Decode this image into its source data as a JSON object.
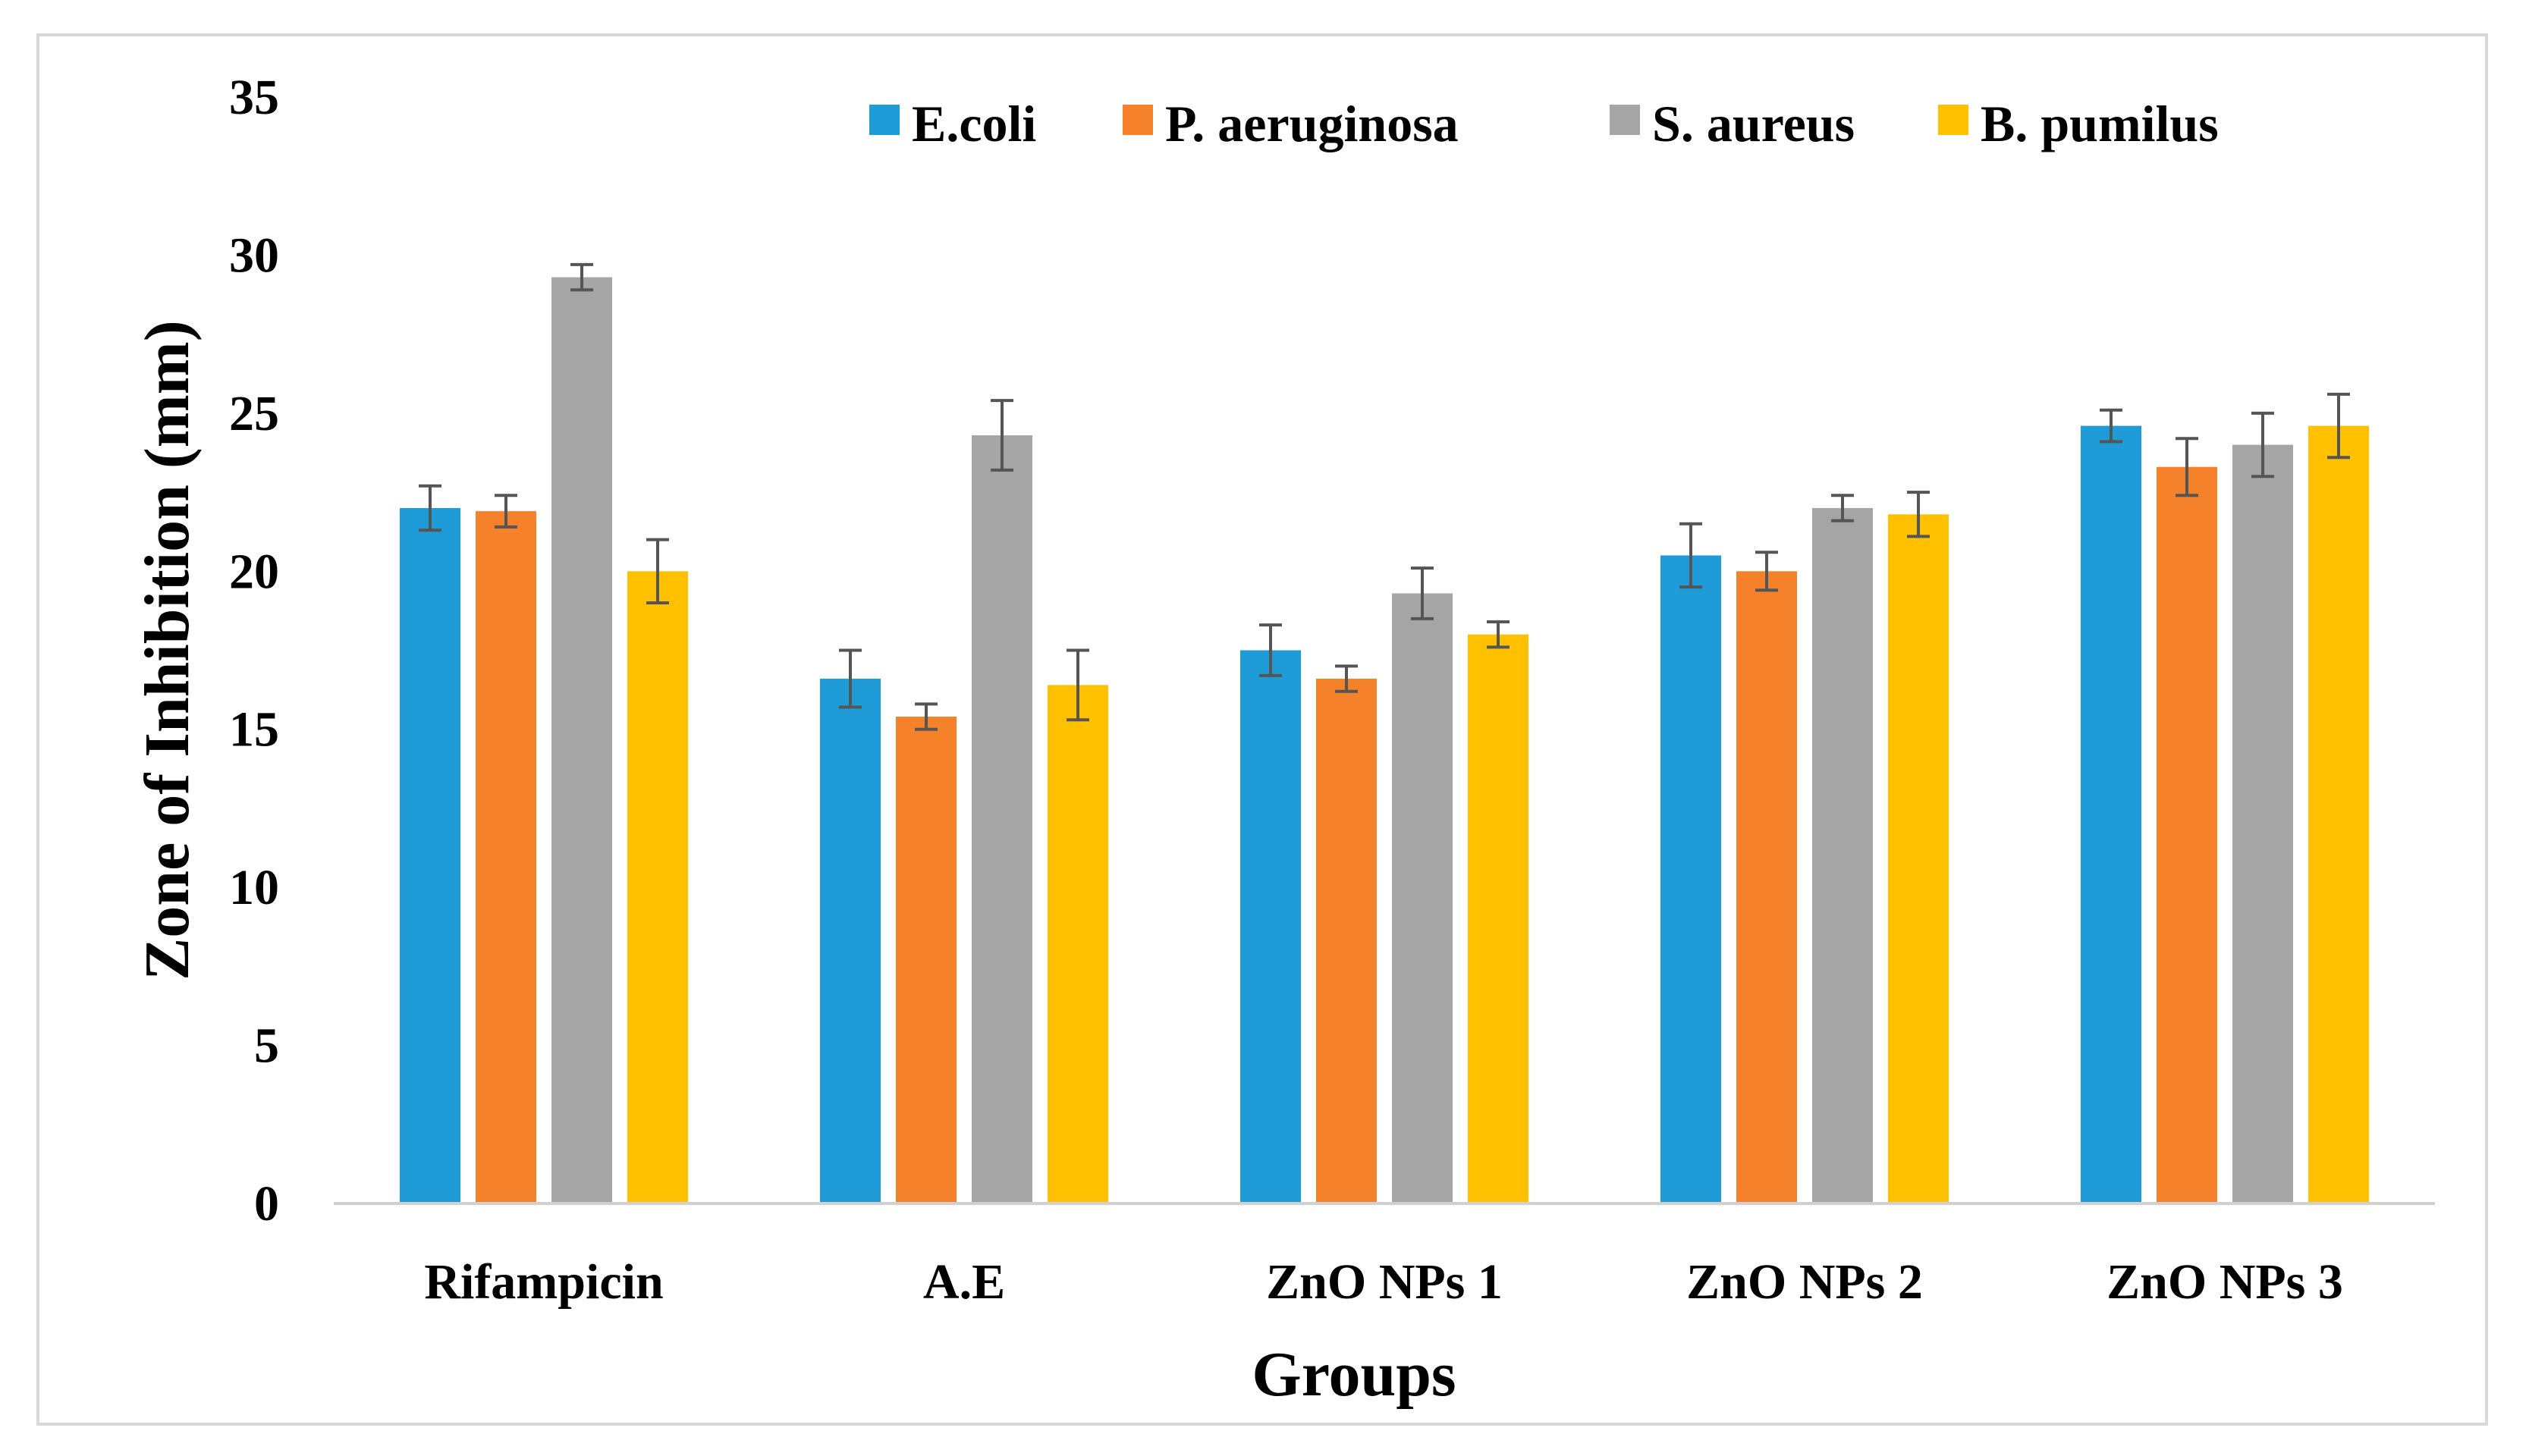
{
  "chart_data": {
    "type": "bar",
    "title": "",
    "xlabel": "Groups",
    "ylabel": "Zone of Inhibition (mm)",
    "ylim": [
      0,
      35
    ],
    "yticks": [
      0,
      5,
      10,
      15,
      20,
      25,
      30,
      35
    ],
    "grid": false,
    "legend_position": "top",
    "categories": [
      "Rifampicin",
      "A.E",
      "ZnO NPs 1",
      "ZnO NPs 2",
      "ZnO NPs 3"
    ],
    "series": [
      {
        "name": "E.coli",
        "color": "#1f9bd7",
        "values": [
          22.0,
          16.6,
          17.5,
          20.5,
          24.6
        ],
        "errors": [
          0.7,
          0.9,
          0.8,
          1.0,
          0.5
        ]
      },
      {
        "name": "P. aeruginosa",
        "color": "#f5822a",
        "values": [
          21.9,
          15.4,
          16.6,
          20.0,
          23.3
        ],
        "errors": [
          0.5,
          0.4,
          0.4,
          0.6,
          0.9
        ]
      },
      {
        "name": "S. aureus",
        "color": "#a5a5a5",
        "values": [
          29.3,
          24.3,
          19.3,
          22.0,
          24.0
        ],
        "errors": [
          0.4,
          1.1,
          0.8,
          0.4,
          1.0
        ]
      },
      {
        "name": "B. pumilus",
        "color": "#ffc000",
        "values": [
          20.0,
          16.4,
          18.0,
          21.8,
          24.6
        ],
        "errors": [
          1.0,
          1.1,
          0.4,
          0.7,
          1.0
        ]
      }
    ]
  }
}
